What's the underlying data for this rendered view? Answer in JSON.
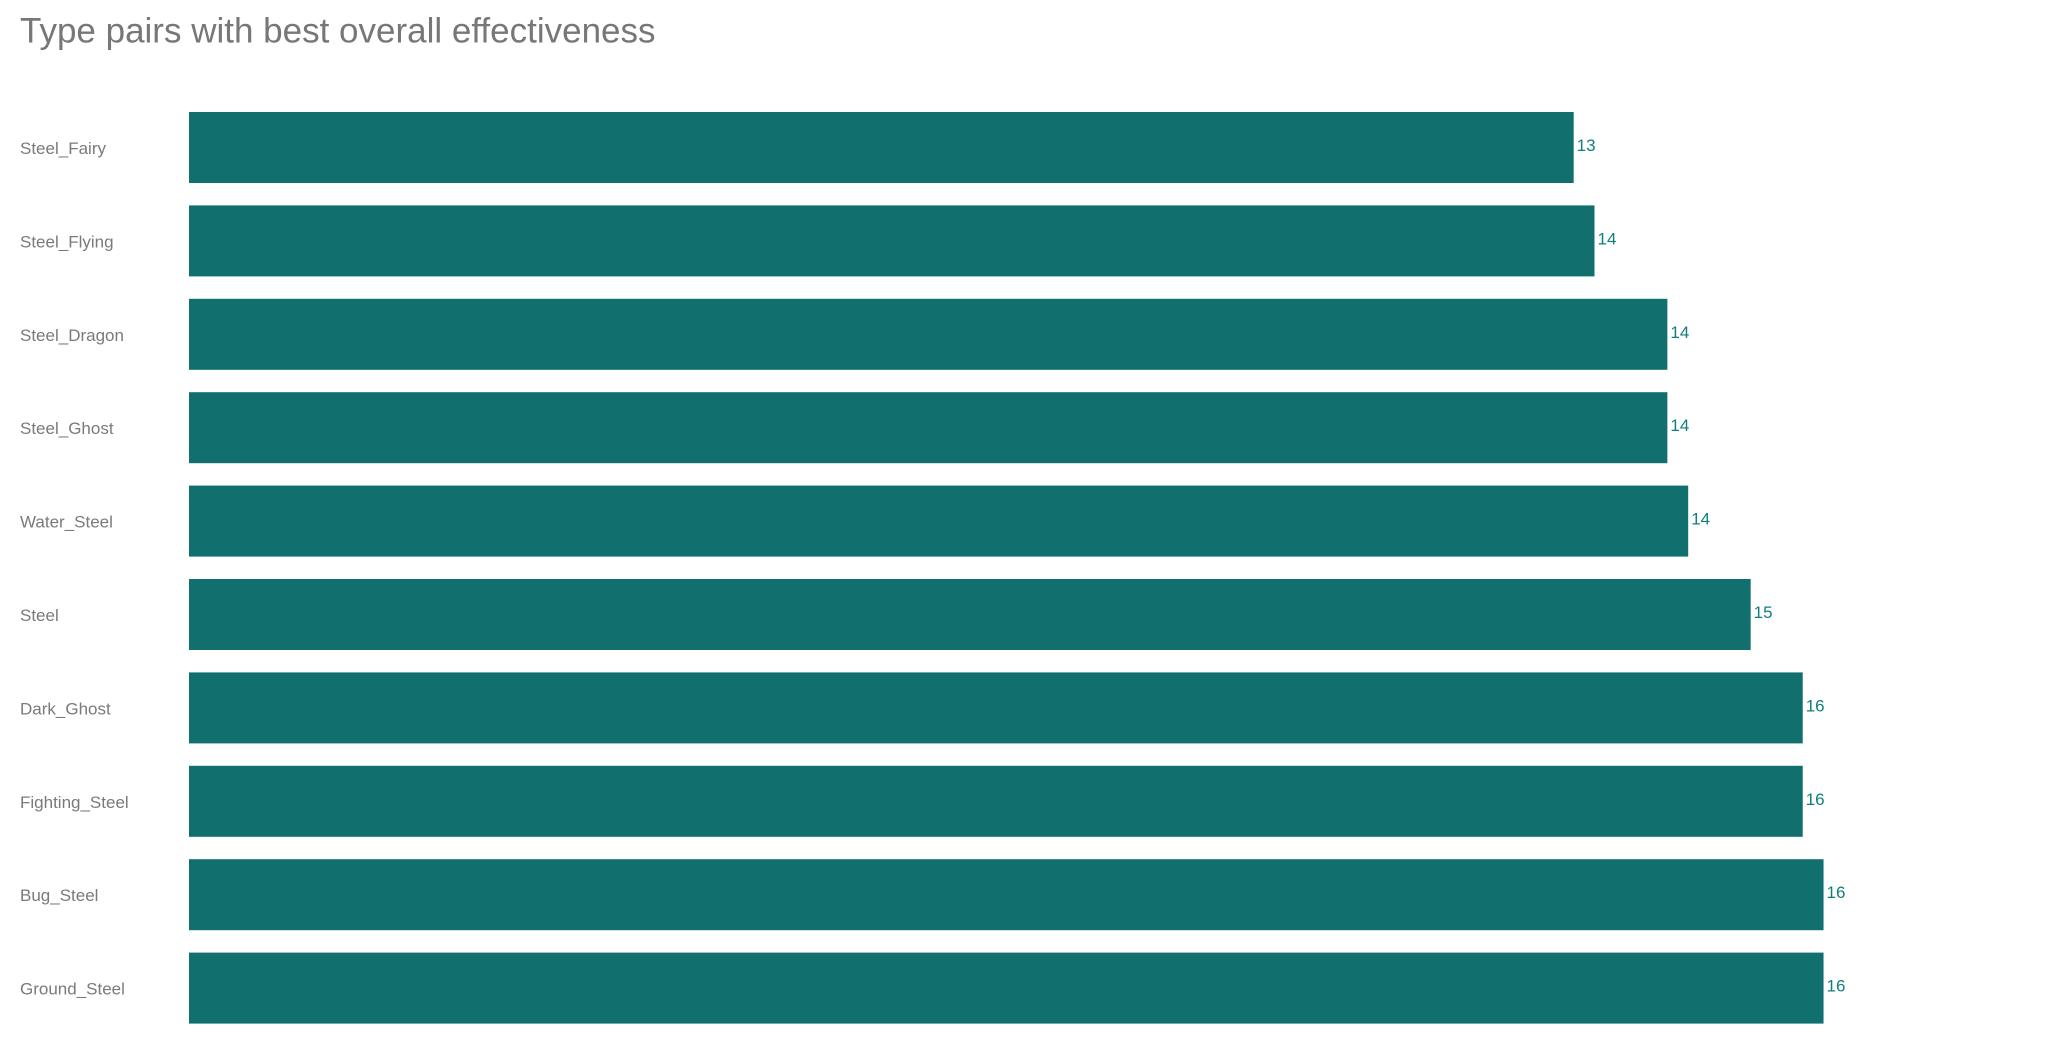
{
  "chart_data": {
    "type": "barh",
    "title": "Type pairs with best overall effectiveness",
    "categories": [
      "Steel_Fairy",
      "Steel_Flying",
      "Steel_Dragon",
      "Steel_Ghost",
      "Water_Steel",
      "Steel",
      "Dark_Ghost",
      "Fighting_Steel",
      "Bug_Steel",
      "Ground_Steel"
    ],
    "values": [
      13.3,
      13.5,
      14.2,
      14.2,
      14.4,
      15.0,
      15.5,
      15.5,
      15.7,
      15.7
    ],
    "value_labels": [
      "13",
      "14",
      "14",
      "14",
      "14",
      "15",
      "16",
      "16",
      "16",
      "16"
    ],
    "color": "#11706d",
    "xlim": [
      0,
      18
    ],
    "grid": false
  }
}
